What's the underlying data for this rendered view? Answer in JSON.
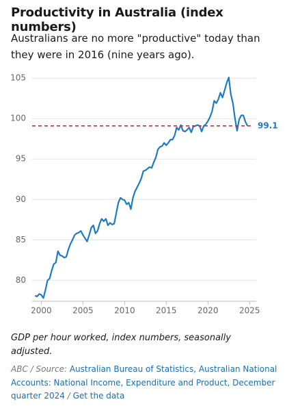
{
  "chart_data": {
    "type": "line",
    "title": "Productivity in Australia (index numbers)",
    "subtitle": "Australians are no more \"productive\" today than they were in 2016 (nine years ago).",
    "x": [
      1999.25,
      1999.5,
      1999.75,
      2000,
      2000.25,
      2000.5,
      2000.75,
      2001,
      2001.25,
      2001.5,
      2001.75,
      2002,
      2002.25,
      2002.5,
      2002.75,
      2003,
      2003.25,
      2003.5,
      2003.75,
      2004,
      2004.25,
      2004.5,
      2004.75,
      2005,
      2005.25,
      2005.5,
      2005.75,
      2006,
      2006.25,
      2006.5,
      2006.75,
      2007,
      2007.25,
      2007.5,
      2007.75,
      2008,
      2008.25,
      2008.5,
      2008.75,
      2009,
      2009.25,
      2009.5,
      2009.75,
      2010,
      2010.25,
      2010.5,
      2010.75,
      2011,
      2011.25,
      2011.5,
      2011.75,
      2012,
      2012.25,
      2012.5,
      2012.75,
      2013,
      2013.25,
      2013.5,
      2013.75,
      2014,
      2014.25,
      2014.5,
      2014.75,
      2015,
      2015.25,
      2015.5,
      2015.75,
      2016,
      2016.25,
      2016.5,
      2016.75,
      2017,
      2017.25,
      2017.5,
      2017.75,
      2018,
      2018.25,
      2018.5,
      2018.75,
      2019,
      2019.25,
      2019.5,
      2019.75,
      2020,
      2020.25,
      2020.5,
      2020.75,
      2021,
      2021.25,
      2021.5,
      2021.75,
      2022,
      2022.25,
      2022.5,
      2022.75,
      2023,
      2023.25,
      2023.5,
      2023.75,
      2024,
      2024.25,
      2024.5,
      2024.75
    ],
    "series": [
      {
        "name": "Productivity",
        "color": "#1f7bc1",
        "values": [
          78.1,
          78.0,
          78.3,
          78.2,
          77.8,
          78.8,
          80.0,
          80.2,
          81.2,
          82.0,
          82.2,
          83.6,
          83.1,
          83.0,
          82.8,
          82.9,
          83.8,
          84.5,
          85.0,
          85.6,
          85.8,
          85.9,
          86.1,
          85.6,
          85.2,
          84.8,
          85.6,
          86.5,
          86.8,
          85.8,
          86.1,
          87.0,
          87.6,
          87.3,
          87.6,
          86.8,
          87.1,
          86.9,
          87.0,
          88.3,
          89.6,
          90.2,
          90.0,
          89.9,
          89.4,
          89.6,
          88.8,
          90.2,
          91.0,
          91.5,
          92.0,
          92.6,
          93.5,
          93.6,
          93.8,
          94.0,
          93.9,
          94.6,
          95.2,
          96.2,
          96.5,
          96.6,
          97.0,
          96.7,
          97.0,
          97.4,
          97.4,
          97.9,
          98.9,
          98.6,
          99.2,
          98.5,
          98.4,
          98.6,
          98.9,
          98.3,
          99.0,
          99.1,
          99.2,
          99.1,
          98.4,
          99.1,
          99.3,
          99.7,
          100.2,
          100.9,
          102.2,
          101.9,
          102.4,
          103.2,
          102.6,
          103.5,
          104.4,
          105.1,
          103.0,
          101.9,
          100.0,
          98.5,
          99.9,
          100.4,
          100.4,
          99.6,
          99.1
        ]
      }
    ],
    "reference_line": {
      "value": 99.1,
      "color": "#d62b35"
    },
    "xlim": [
      1998.9,
      2025.8
    ],
    "xticks": [
      2000,
      2005,
      2010,
      2015,
      2020,
      2025
    ],
    "ylim": [
      77.4,
      106.2
    ],
    "yticks": [
      80,
      85,
      90,
      95,
      100,
      105
    ],
    "grid": true,
    "note": "GDP per hour worked, index numbers, seasonally adjusted.",
    "source_prefix": "ABC / Source:",
    "source": "Australian Bureau of Statistics, Australian National Accounts: National Income, Expenditure and Product, December quarter 2024",
    "link": "Get the data"
  }
}
